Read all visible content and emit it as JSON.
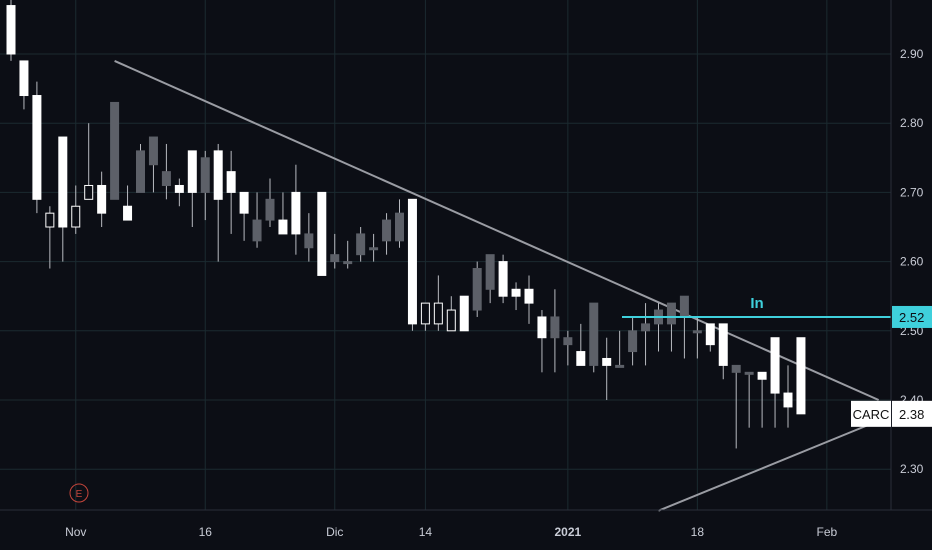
{
  "chart_data": {
    "type": "candlestick",
    "symbol": "CARC",
    "last_price": "2.38",
    "level_price": "2.52",
    "level_label": "In",
    "event_marker": "E",
    "ylim": [
      2.24,
      2.98
    ],
    "y_ticks": [
      "2.90",
      "2.80",
      "2.70",
      "2.60",
      "2.50",
      "2.40",
      "2.30"
    ],
    "x_ticks": [
      {
        "label": "Nov",
        "i": 5,
        "bold": false
      },
      {
        "label": "16",
        "i": 15,
        "bold": false
      },
      {
        "label": "Dic",
        "i": 25,
        "bold": false
      },
      {
        "label": "14",
        "i": 32,
        "bold": false
      },
      {
        "label": "2021",
        "i": 43,
        "bold": true
      },
      {
        "label": "18",
        "i": 53,
        "bold": false
      },
      {
        "label": "Feb",
        "i": 63,
        "bold": false
      }
    ],
    "candles": [
      {
        "o": 2.97,
        "h": 2.98,
        "l": 2.89,
        "c": 2.9,
        "dir": "down"
      },
      {
        "o": 2.89,
        "h": 2.89,
        "l": 2.82,
        "c": 2.84,
        "dir": "down"
      },
      {
        "o": 2.84,
        "h": 2.86,
        "l": 2.67,
        "c": 2.69,
        "dir": "down"
      },
      {
        "o": 2.65,
        "h": 2.68,
        "l": 2.59,
        "c": 2.67,
        "dir": "up"
      },
      {
        "o": 2.78,
        "h": 2.78,
        "l": 2.6,
        "c": 2.65,
        "dir": "down"
      },
      {
        "o": 2.65,
        "h": 2.71,
        "l": 2.64,
        "c": 2.68,
        "dir": "up"
      },
      {
        "o": 2.69,
        "h": 2.8,
        "l": 2.69,
        "c": 2.71,
        "dir": "up"
      },
      {
        "o": 2.71,
        "h": 2.73,
        "l": 2.65,
        "c": 2.67,
        "dir": "down"
      },
      {
        "o": 2.69,
        "h": 2.83,
        "l": 2.69,
        "c": 2.83,
        "dir": "gray"
      },
      {
        "o": 2.68,
        "h": 2.71,
        "l": 2.66,
        "c": 2.66,
        "dir": "down"
      },
      {
        "o": 2.7,
        "h": 2.77,
        "l": 2.7,
        "c": 2.76,
        "dir": "gray"
      },
      {
        "o": 2.74,
        "h": 2.78,
        "l": 2.7,
        "c": 2.78,
        "dir": "gray"
      },
      {
        "o": 2.73,
        "h": 2.77,
        "l": 2.69,
        "c": 2.71,
        "dir": "gray"
      },
      {
        "o": 2.7,
        "h": 2.72,
        "l": 2.68,
        "c": 2.71,
        "dir": "down"
      },
      {
        "o": 2.76,
        "h": 2.76,
        "l": 2.65,
        "c": 2.7,
        "dir": "down"
      },
      {
        "o": 2.7,
        "h": 2.76,
        "l": 2.66,
        "c": 2.75,
        "dir": "gray"
      },
      {
        "o": 2.76,
        "h": 2.77,
        "l": 2.6,
        "c": 2.69,
        "dir": "down"
      },
      {
        "o": 2.73,
        "h": 2.76,
        "l": 2.64,
        "c": 2.7,
        "dir": "down"
      },
      {
        "o": 2.7,
        "h": 2.7,
        "l": 2.63,
        "c": 2.67,
        "dir": "down"
      },
      {
        "o": 2.63,
        "h": 2.7,
        "l": 2.62,
        "c": 2.66,
        "dir": "gray"
      },
      {
        "o": 2.66,
        "h": 2.72,
        "l": 2.65,
        "c": 2.69,
        "dir": "gray"
      },
      {
        "o": 2.66,
        "h": 2.7,
        "l": 2.64,
        "c": 2.64,
        "dir": "down"
      },
      {
        "o": 2.7,
        "h": 2.74,
        "l": 2.61,
        "c": 2.64,
        "dir": "down"
      },
      {
        "o": 2.62,
        "h": 2.67,
        "l": 2.6,
        "c": 2.64,
        "dir": "gray"
      },
      {
        "o": 2.7,
        "h": 2.7,
        "l": 2.58,
        "c": 2.58,
        "dir": "down"
      },
      {
        "o": 2.61,
        "h": 2.64,
        "l": 2.59,
        "c": 2.6,
        "dir": "gray"
      },
      {
        "o": 2.6,
        "h": 2.63,
        "l": 2.59,
        "c": 2.6,
        "dir": "gray"
      },
      {
        "o": 2.61,
        "h": 2.65,
        "l": 2.6,
        "c": 2.64,
        "dir": "gray"
      },
      {
        "o": 2.62,
        "h": 2.64,
        "l": 2.6,
        "c": 2.62,
        "dir": "gray"
      },
      {
        "o": 2.63,
        "h": 2.67,
        "l": 2.61,
        "c": 2.66,
        "dir": "gray"
      },
      {
        "o": 2.63,
        "h": 2.69,
        "l": 2.62,
        "c": 2.67,
        "dir": "gray"
      },
      {
        "o": 2.69,
        "h": 2.69,
        "l": 2.5,
        "c": 2.51,
        "dir": "down"
      },
      {
        "o": 2.51,
        "h": 2.54,
        "l": 2.5,
        "c": 2.54,
        "dir": "up"
      },
      {
        "o": 2.51,
        "h": 2.58,
        "l": 2.5,
        "c": 2.54,
        "dir": "up"
      },
      {
        "o": 2.5,
        "h": 2.55,
        "l": 2.5,
        "c": 2.53,
        "dir": "up"
      },
      {
        "o": 2.55,
        "h": 2.55,
        "l": 2.5,
        "c": 2.5,
        "dir": "down"
      },
      {
        "o": 2.53,
        "h": 2.6,
        "l": 2.52,
        "c": 2.59,
        "dir": "gray"
      },
      {
        "o": 2.61,
        "h": 2.61,
        "l": 2.54,
        "c": 2.56,
        "dir": "gray"
      },
      {
        "o": 2.6,
        "h": 2.61,
        "l": 2.54,
        "c": 2.55,
        "dir": "down"
      },
      {
        "o": 2.55,
        "h": 2.57,
        "l": 2.53,
        "c": 2.56,
        "dir": "down"
      },
      {
        "o": 2.56,
        "h": 2.58,
        "l": 2.51,
        "c": 2.54,
        "dir": "down"
      },
      {
        "o": 2.52,
        "h": 2.53,
        "l": 2.44,
        "c": 2.49,
        "dir": "down"
      },
      {
        "o": 2.49,
        "h": 2.56,
        "l": 2.44,
        "c": 2.52,
        "dir": "gray"
      },
      {
        "o": 2.48,
        "h": 2.5,
        "l": 2.45,
        "c": 2.49,
        "dir": "gray"
      },
      {
        "o": 2.47,
        "h": 2.51,
        "l": 2.45,
        "c": 2.45,
        "dir": "down"
      },
      {
        "o": 2.45,
        "h": 2.54,
        "l": 2.44,
        "c": 2.54,
        "dir": "gray"
      },
      {
        "o": 2.46,
        "h": 2.49,
        "l": 2.4,
        "c": 2.45,
        "dir": "down"
      },
      {
        "o": 2.45,
        "h": 2.5,
        "l": 2.45,
        "c": 2.45,
        "dir": "gray"
      },
      {
        "o": 2.47,
        "h": 2.52,
        "l": 2.45,
        "c": 2.5,
        "dir": "gray"
      },
      {
        "o": 2.5,
        "h": 2.54,
        "l": 2.45,
        "c": 2.51,
        "dir": "gray"
      },
      {
        "o": 2.51,
        "h": 2.54,
        "l": 2.47,
        "c": 2.53,
        "dir": "gray"
      },
      {
        "o": 2.51,
        "h": 2.54,
        "l": 2.47,
        "c": 2.54,
        "dir": "gray"
      },
      {
        "o": 2.52,
        "h": 2.55,
        "l": 2.46,
        "c": 2.55,
        "dir": "gray"
      },
      {
        "o": 2.5,
        "h": 2.52,
        "l": 2.46,
        "c": 2.5,
        "dir": "gray"
      },
      {
        "o": 2.51,
        "h": 2.51,
        "l": 2.47,
        "c": 2.48,
        "dir": "down"
      },
      {
        "o": 2.51,
        "h": 2.51,
        "l": 2.43,
        "c": 2.45,
        "dir": "down"
      },
      {
        "o": 2.45,
        "h": 2.45,
        "l": 2.33,
        "c": 2.44,
        "dir": "gray"
      },
      {
        "o": 2.44,
        "h": 2.44,
        "l": 2.36,
        "c": 2.44,
        "dir": "gray"
      },
      {
        "o": 2.44,
        "h": 2.44,
        "l": 2.36,
        "c": 2.43,
        "dir": "down"
      },
      {
        "o": 2.49,
        "h": 2.49,
        "l": 2.36,
        "c": 2.41,
        "dir": "down"
      },
      {
        "o": 2.41,
        "h": 2.45,
        "l": 2.36,
        "c": 2.39,
        "dir": "down"
      },
      {
        "o": 2.49,
        "h": 2.49,
        "l": 2.38,
        "c": 2.38,
        "dir": "down"
      }
    ],
    "trendlines": [
      {
        "from": {
          "i": 8,
          "p": 2.89
        },
        "to": {
          "i": 67,
          "p": 2.4
        }
      },
      {
        "from": {
          "i": 50,
          "p": 2.24
        },
        "to": {
          "i": 67,
          "p": 2.37
        }
      }
    ],
    "colors": {
      "background": "#0c0e15",
      "grid": "#1b2a30",
      "up": "#ffffff",
      "down": "#ffffff",
      "gray": "#5d6068",
      "wick": "#b8bac0",
      "trendline": "#9a9ca3",
      "level": "#3fd0dc",
      "level_label": "#3fd0dc",
      "axis_text": "#c9ccd6",
      "event": "#c4453b",
      "tag_bg": "#ffffff",
      "tag_text": "#111111"
    }
  }
}
